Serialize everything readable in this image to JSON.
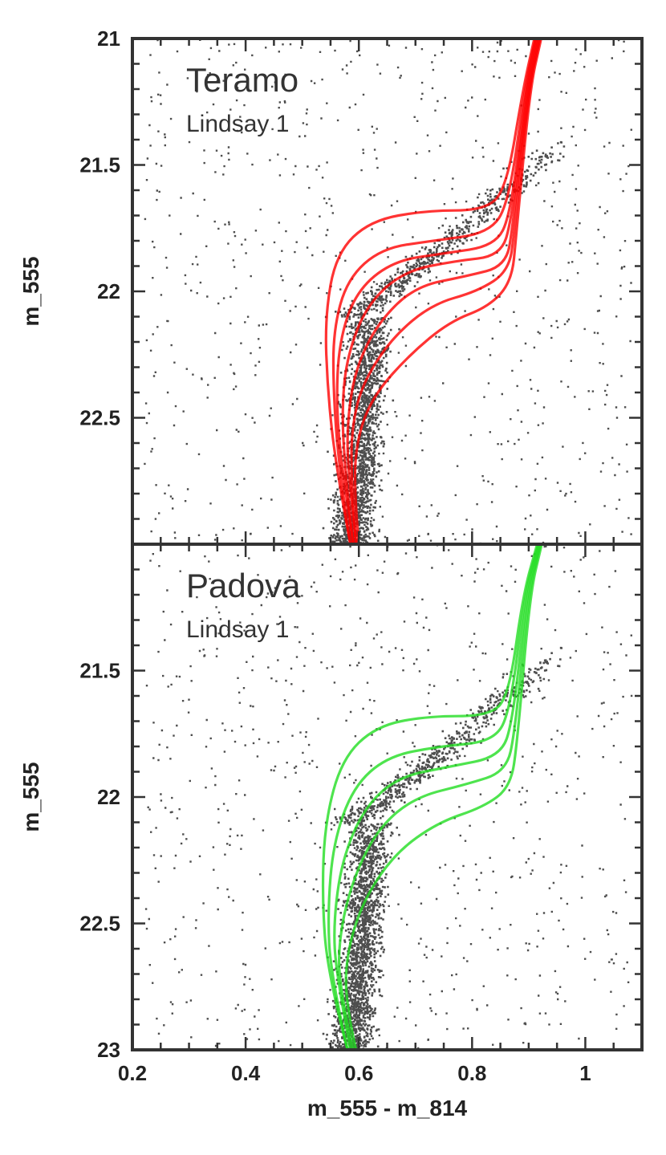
{
  "chart_data": [
    {
      "type": "scatter",
      "panel": "top",
      "title": "Teramo",
      "subtitle": "Lindsay 1",
      "xlabel": "m_555 - m_814",
      "ylabel": "m_555",
      "xlim": [
        0.2,
        1.1
      ],
      "ylim": [
        23.0,
        21.0
      ],
      "x_ticks": [
        "0.2",
        "0.4",
        "0.6",
        "0.8",
        "1"
      ],
      "y_ticks": [
        "21",
        "21.5",
        "22",
        "22.5"
      ],
      "isochrone_color": "#ff0000",
      "isochrones": [
        {
          "points": [
            [
              0.585,
              23.0
            ],
            [
              0.56,
              22.7
            ],
            [
              0.545,
              22.4
            ],
            [
              0.54,
              22.1
            ],
            [
              0.56,
              21.85
            ],
            [
              0.62,
              21.72
            ],
            [
              0.72,
              21.68
            ],
            [
              0.82,
              21.68
            ],
            [
              0.86,
              21.6
            ],
            [
              0.89,
              21.2
            ],
            [
              0.91,
              21.0
            ]
          ]
        },
        {
          "points": [
            [
              0.585,
              23.0
            ],
            [
              0.565,
              22.7
            ],
            [
              0.555,
              22.4
            ],
            [
              0.555,
              22.15
            ],
            [
              0.58,
              21.95
            ],
            [
              0.64,
              21.83
            ],
            [
              0.73,
              21.8
            ],
            [
              0.83,
              21.77
            ],
            [
              0.865,
              21.65
            ],
            [
              0.893,
              21.2
            ],
            [
              0.912,
              21.0
            ]
          ]
        },
        {
          "points": [
            [
              0.59,
              23.0
            ],
            [
              0.57,
              22.7
            ],
            [
              0.56,
              22.45
            ],
            [
              0.565,
              22.2
            ],
            [
              0.595,
              22.0
            ],
            [
              0.66,
              21.88
            ],
            [
              0.75,
              21.85
            ],
            [
              0.84,
              21.82
            ],
            [
              0.868,
              21.7
            ],
            [
              0.895,
              21.2
            ],
            [
              0.914,
              21.0
            ]
          ]
        },
        {
          "points": [
            [
              0.59,
              23.0
            ],
            [
              0.575,
              22.7
            ],
            [
              0.57,
              22.45
            ],
            [
              0.58,
              22.25
            ],
            [
              0.615,
              22.05
            ],
            [
              0.68,
              21.92
            ],
            [
              0.77,
              21.88
            ],
            [
              0.85,
              21.86
            ],
            [
              0.87,
              21.72
            ],
            [
              0.897,
              21.2
            ],
            [
              0.916,
              21.0
            ]
          ]
        },
        {
          "points": [
            [
              0.595,
              23.0
            ],
            [
              0.58,
              22.7
            ],
            [
              0.58,
              22.5
            ],
            [
              0.595,
              22.3
            ],
            [
              0.635,
              22.12
            ],
            [
              0.7,
              21.98
            ],
            [
              0.79,
              21.94
            ],
            [
              0.86,
              21.9
            ],
            [
              0.872,
              21.74
            ],
            [
              0.899,
              21.2
            ],
            [
              0.918,
              21.0
            ]
          ]
        },
        {
          "points": [
            [
              0.595,
              23.0
            ],
            [
              0.585,
              22.7
            ],
            [
              0.59,
              22.5
            ],
            [
              0.61,
              22.35
            ],
            [
              0.66,
              22.18
            ],
            [
              0.73,
              22.05
            ],
            [
              0.81,
              22.0
            ],
            [
              0.865,
              21.92
            ],
            [
              0.875,
              21.76
            ],
            [
              0.9,
              21.2
            ],
            [
              0.92,
              21.0
            ]
          ]
        },
        {
          "points": [
            [
              0.6,
              23.0
            ],
            [
              0.59,
              22.75
            ],
            [
              0.6,
              22.55
            ],
            [
              0.63,
              22.4
            ],
            [
              0.69,
              22.25
            ],
            [
              0.76,
              22.12
            ],
            [
              0.83,
              22.06
            ],
            [
              0.87,
              21.96
            ],
            [
              0.878,
              21.78
            ],
            [
              0.902,
              21.2
            ],
            [
              0.922,
              21.0
            ]
          ]
        }
      ]
    },
    {
      "type": "scatter",
      "panel": "bottom",
      "title": "Padova",
      "subtitle": "Lindsay 1",
      "xlabel": "m_555 - m_814",
      "ylabel": "m_555",
      "xlim": [
        0.2,
        1.1
      ],
      "ylim": [
        23.0,
        21.0
      ],
      "x_ticks": [
        "0.2",
        "0.4",
        "0.6",
        "0.8",
        "1"
      ],
      "y_ticks": [
        "21.5",
        "22",
        "22.5",
        "23"
      ],
      "isochrone_color": "#22dd22",
      "isochrones": [
        {
          "points": [
            [
              0.58,
              23.0
            ],
            [
              0.545,
              22.7
            ],
            [
              0.535,
              22.4
            ],
            [
              0.54,
              22.1
            ],
            [
              0.57,
              21.85
            ],
            [
              0.63,
              21.72
            ],
            [
              0.72,
              21.68
            ],
            [
              0.83,
              21.68
            ],
            [
              0.865,
              21.6
            ],
            [
              0.89,
              21.2
            ],
            [
              0.915,
              21.0
            ]
          ]
        },
        {
          "points": [
            [
              0.58,
              23.0
            ],
            [
              0.55,
              22.7
            ],
            [
              0.545,
              22.45
            ],
            [
              0.555,
              22.18
            ],
            [
              0.59,
              21.96
            ],
            [
              0.65,
              21.84
            ],
            [
              0.74,
              21.8
            ],
            [
              0.84,
              21.78
            ],
            [
              0.868,
              21.65
            ],
            [
              0.893,
              21.2
            ],
            [
              0.917,
              21.0
            ]
          ]
        },
        {
          "points": [
            [
              0.585,
              23.0
            ],
            [
              0.56,
              22.7
            ],
            [
              0.555,
              22.5
            ],
            [
              0.57,
              22.25
            ],
            [
              0.61,
              22.04
            ],
            [
              0.67,
              21.92
            ],
            [
              0.76,
              21.88
            ],
            [
              0.85,
              21.84
            ],
            [
              0.872,
              21.7
            ],
            [
              0.896,
              21.2
            ],
            [
              0.919,
              21.0
            ]
          ]
        },
        {
          "points": [
            [
              0.59,
              23.0
            ],
            [
              0.565,
              22.75
            ],
            [
              0.565,
              22.55
            ],
            [
              0.59,
              22.32
            ],
            [
              0.635,
              22.12
            ],
            [
              0.7,
              22.0
            ],
            [
              0.79,
              21.95
            ],
            [
              0.86,
              21.9
            ],
            [
              0.876,
              21.74
            ],
            [
              0.899,
              21.2
            ],
            [
              0.921,
              21.0
            ]
          ]
        },
        {
          "points": [
            [
              0.595,
              23.0
            ],
            [
              0.575,
              22.8
            ],
            [
              0.58,
              22.6
            ],
            [
              0.61,
              22.4
            ],
            [
              0.665,
              22.22
            ],
            [
              0.74,
              22.1
            ],
            [
              0.82,
              22.04
            ],
            [
              0.868,
              21.96
            ],
            [
              0.88,
              21.78
            ],
            [
              0.902,
              21.2
            ],
            [
              0.923,
              21.0
            ]
          ]
        }
      ]
    }
  ]
}
